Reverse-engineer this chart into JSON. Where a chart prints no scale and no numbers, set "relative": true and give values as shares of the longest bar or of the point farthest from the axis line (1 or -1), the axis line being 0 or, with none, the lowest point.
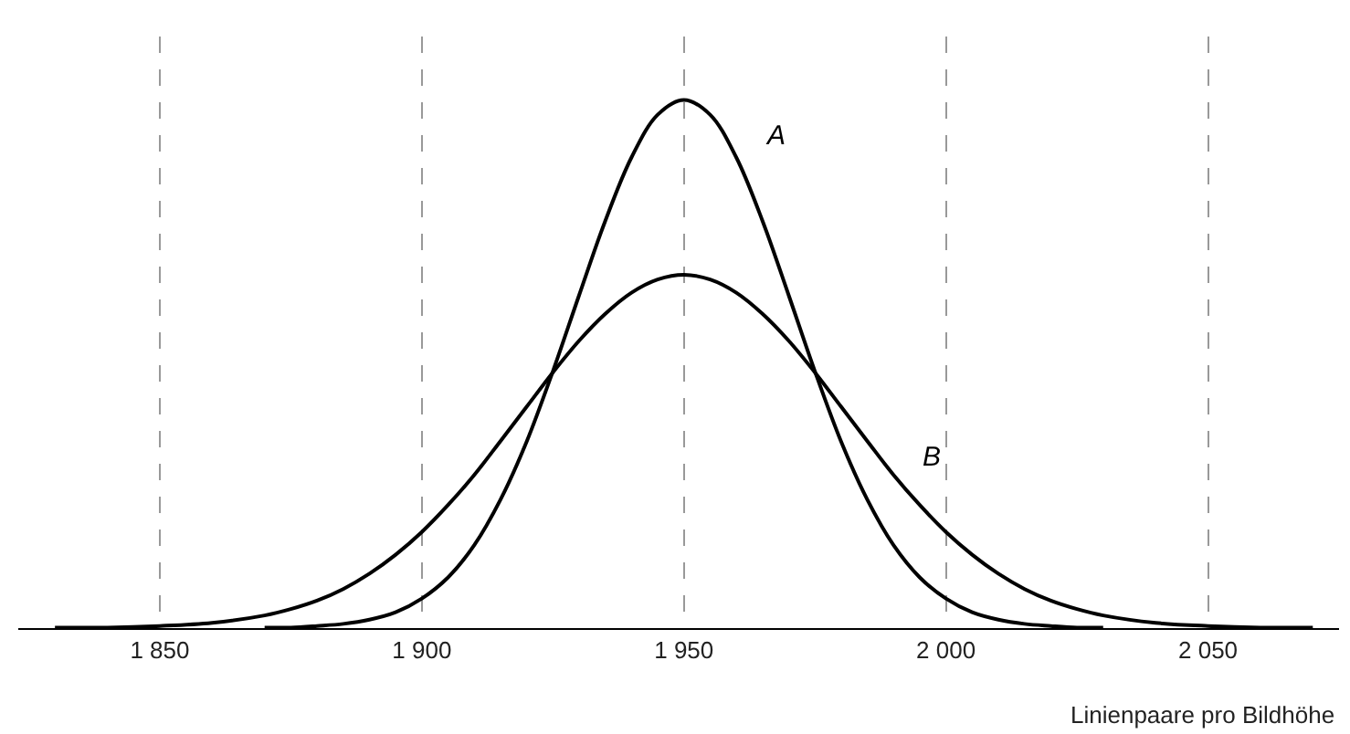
{
  "chart_data": {
    "type": "line",
    "relative": true,
    "xlabel": "Linienpaare pro Bildhöhe",
    "x": [
      1830,
      1840,
      1850,
      1860,
      1870,
      1875,
      1880,
      1885,
      1890,
      1895,
      1900,
      1905,
      1910,
      1915,
      1920,
      1925,
      1930,
      1935,
      1940,
      1945,
      1950,
      1955,
      1960,
      1965,
      1970,
      1975,
      1980,
      1985,
      1990,
      1995,
      2000,
      2005,
      2010,
      2015,
      2020,
      2025,
      2030,
      2040,
      2050,
      2060,
      2070
    ],
    "series": [
      {
        "name": "A",
        "color": "#000000",
        "x": [
          1870,
          1875,
          1880,
          1885,
          1890,
          1895,
          1900,
          1905,
          1910,
          1915,
          1920,
          1925,
          1930,
          1935,
          1940,
          1945,
          1950,
          1955,
          1960,
          1965,
          1970,
          1975,
          1980,
          1985,
          1990,
          1995,
          2000,
          2005,
          2010,
          2015,
          2020,
          2025,
          2030
        ],
        "values": [
          0.001,
          0.001,
          0.004,
          0.008,
          0.016,
          0.03,
          0.056,
          0.096,
          0.157,
          0.243,
          0.353,
          0.486,
          0.63,
          0.771,
          0.891,
          0.972,
          1,
          0.972,
          0.891,
          0.771,
          0.63,
          0.486,
          0.353,
          0.243,
          0.157,
          0.096,
          0.056,
          0.03,
          0.016,
          0.008,
          0.004,
          0.001,
          0.001
        ]
      },
      {
        "name": "B",
        "color": "#000000",
        "values": [
          0.001,
          0.001,
          0.004,
          0.01,
          0.024,
          0.036,
          0.052,
          0.074,
          0.103,
          0.139,
          0.182,
          0.233,
          0.29,
          0.354,
          0.419,
          0.484,
          0.544,
          0.595,
          0.635,
          0.66,
          0.669,
          0.66,
          0.635,
          0.595,
          0.544,
          0.484,
          0.419,
          0.354,
          0.29,
          0.233,
          0.182,
          0.139,
          0.103,
          0.074,
          0.052,
          0.036,
          0.024,
          0.01,
          0.004,
          0.001,
          0.001
        ]
      }
    ],
    "xlim": [
      1823,
      2075
    ],
    "xticks": [
      {
        "value": 1850,
        "label": "1 850"
      },
      {
        "value": 1900,
        "label": "1 900"
      },
      {
        "value": 1950,
        "label": "1 950"
      },
      {
        "value": 2000,
        "label": "2 000"
      },
      {
        "value": 2050,
        "label": "2 050"
      }
    ],
    "grid": "x",
    "line_style": "solid"
  }
}
